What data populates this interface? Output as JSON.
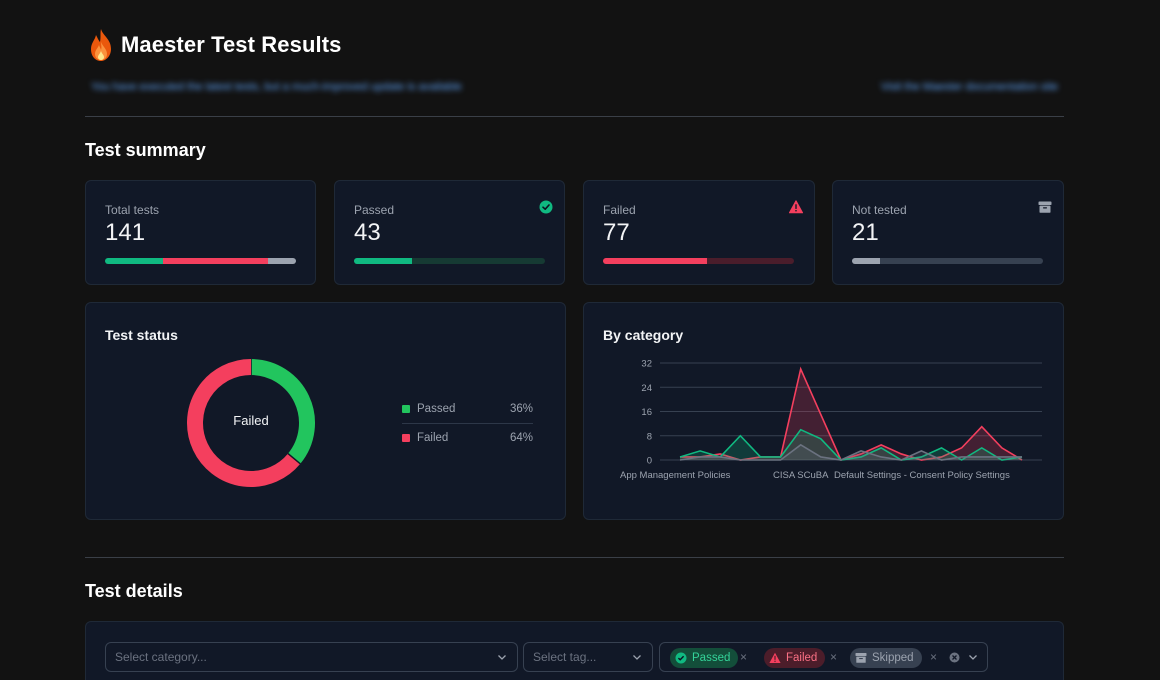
{
  "header": {
    "title": "Maester Test Results",
    "info_left": "You have executed the latest tests, but a much-improved update is available",
    "info_right": "Visit the Maester documentation site"
  },
  "summary": {
    "section_title": "Test summary",
    "cards": [
      {
        "label": "Total tests",
        "value": "141",
        "icon": "none"
      },
      {
        "label": "Passed",
        "value": "43",
        "icon": "check-circle-icon"
      },
      {
        "label": "Failed",
        "value": "77",
        "icon": "warning-triangle-icon"
      },
      {
        "label": "Not tested",
        "value": "21",
        "icon": "archive-icon"
      }
    ],
    "total_bar_fractions": {
      "passed": 0.305,
      "failed": 0.546,
      "not_tested": 0.149
    },
    "passed_bar_fraction": 0.305,
    "failed_bar_fraction": 0.546,
    "not_tested_bar_fraction": 0.149
  },
  "status_panel": {
    "title": "Test status",
    "center_label": "Failed",
    "legend": [
      {
        "name": "Passed",
        "pct": "36%",
        "color": "#22c55e"
      },
      {
        "name": "Failed",
        "pct": "64%",
        "color": "#f43f5e"
      }
    ]
  },
  "category_panel": {
    "title": "By category"
  },
  "chart_data": [
    {
      "type": "pie",
      "title": "",
      "categories": [
        "Passed",
        "Failed"
      ],
      "values": [
        36,
        64
      ],
      "colors": [
        "#22c55e",
        "#f43f5e"
      ],
      "legend_placement": "right"
    },
    {
      "type": "area",
      "title": "",
      "ylim": [
        0,
        32
      ],
      "yticks": [
        "32",
        "24",
        "16",
        "8",
        "0"
      ],
      "grid": true,
      "x_labels_visible": [
        "App Management Policies",
        "CISA SCuBA",
        "Default Settings - Consent Policy Settings"
      ],
      "series": [
        {
          "color": "#f43f5e",
          "values": [
            1,
            1,
            2,
            0,
            1,
            1,
            30,
            15,
            0,
            2,
            5,
            2,
            0,
            1,
            4,
            11,
            4,
            0
          ]
        },
        {
          "color": "#10b981",
          "values": [
            1,
            3,
            1,
            8,
            1,
            1,
            10,
            7,
            0,
            1,
            4,
            0,
            1,
            4,
            0,
            4,
            0,
            1
          ]
        },
        {
          "color": "#6b7280",
          "values": [
            0,
            1,
            1,
            0,
            0,
            0,
            5,
            1,
            0,
            3,
            1,
            0,
            3,
            0,
            1,
            1,
            1,
            1
          ]
        }
      ]
    }
  ],
  "details": {
    "section_title": "Test details",
    "category_placeholder": "Select category...",
    "tag_placeholder": "Select tag...",
    "chips": [
      {
        "label": "Passed",
        "color": "#22c55e",
        "bg": "#14532d"
      },
      {
        "label": "Failed",
        "color": "#f43f5e",
        "bg": "#4c1d2a"
      },
      {
        "label": "Skipped",
        "color": "#9ca3af",
        "bg": "#374151"
      }
    ]
  },
  "colors": {
    "passed": "#10b981",
    "failed": "#f43f5e",
    "not_tested": "#9ca3af",
    "card_bg": "#111827",
    "page_bg": "#121212"
  }
}
